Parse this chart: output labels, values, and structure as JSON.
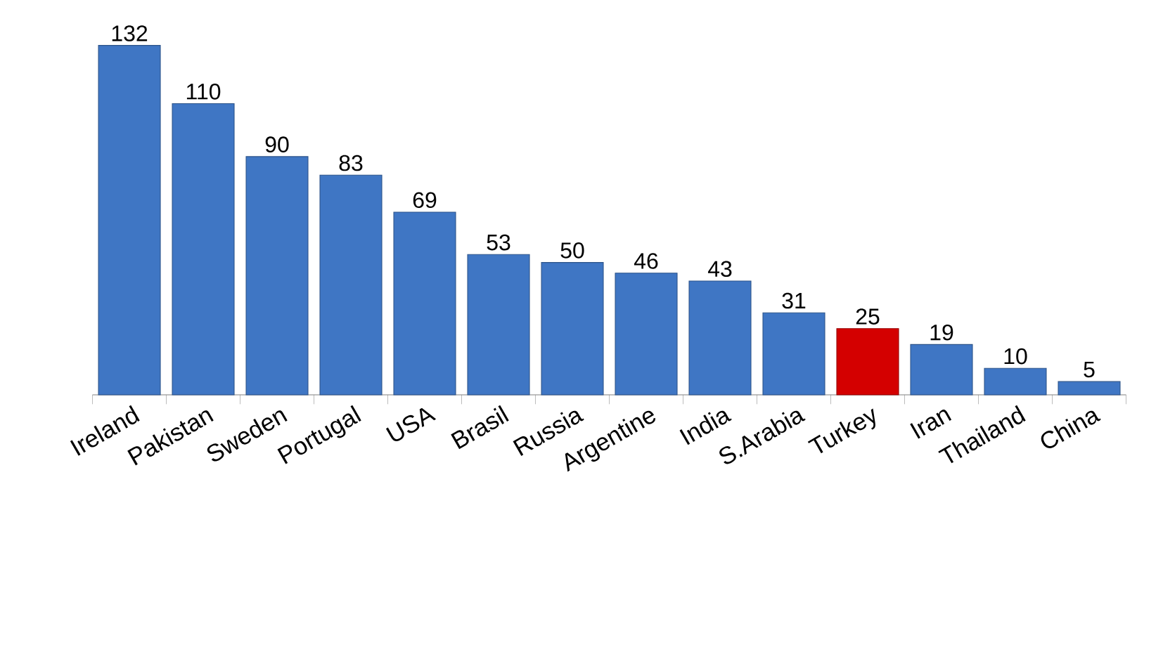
{
  "chart_data": {
    "type": "bar",
    "categories": [
      "Ireland",
      "Pakistan",
      "Sweden",
      "Portugal",
      "USA",
      "Brasil",
      "Russia",
      "Argentine",
      "India",
      "S.Arabia",
      "Turkey",
      "Iran",
      "Thailand",
      "China"
    ],
    "values": [
      132,
      110,
      90,
      83,
      69,
      53,
      50,
      46,
      43,
      31,
      25,
      19,
      10,
      5
    ],
    "colors": [
      "#3f76c4",
      "#3f76c4",
      "#3f76c4",
      "#3f76c4",
      "#3f76c4",
      "#3f76c4",
      "#3f76c4",
      "#3f76c4",
      "#3f76c4",
      "#3f76c4",
      "#d40000",
      "#3f76c4",
      "#3f76c4",
      "#3f76c4"
    ],
    "data_labels": true
  }
}
